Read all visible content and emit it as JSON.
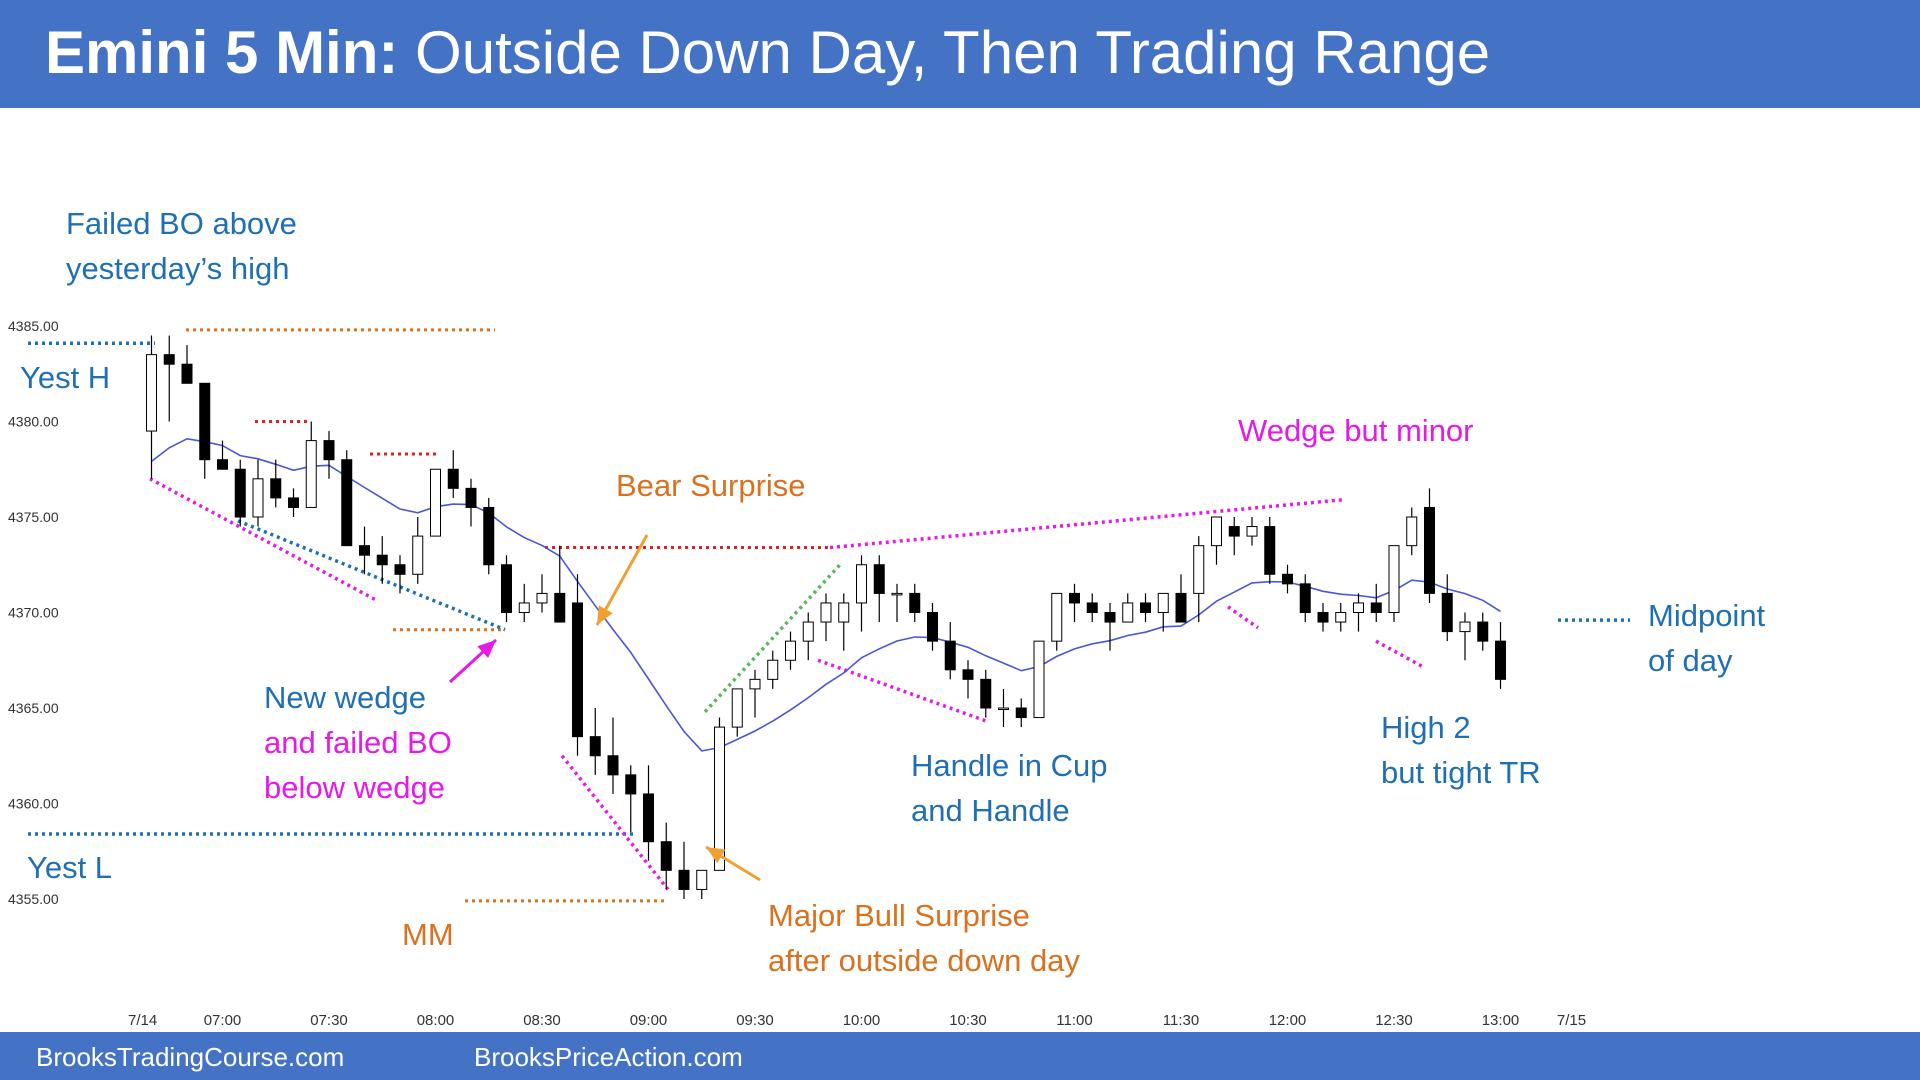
{
  "title": {
    "bold": "Emini 5 Min:",
    "rest": "Outside Down Day, Then Trading Range"
  },
  "footer": {
    "left": "BrooksTradingCourse.com",
    "right": "BrooksPriceAction.com"
  },
  "colors": {
    "header": "#4472C4",
    "blue_text": "#1F6FB4",
    "magenta": "#E619E6",
    "orange": "#D9711E",
    "bull_box": "#5FCB5F",
    "bear_box": "#EC3C3C",
    "ema": "#4A55D8"
  },
  "chart_data": {
    "type": "candlestick",
    "ylim": [
      4354,
      4386
    ],
    "yticks": [
      "4385.00",
      "4380.00",
      "4375.00",
      "4370.00",
      "4365.00",
      "4360.00",
      "4355.00"
    ],
    "ytick_values": [
      4385,
      4380,
      4375,
      4370,
      4365,
      4360,
      4355
    ],
    "xticks": [
      "7/14",
      "07:00",
      "07:30",
      "08:00",
      "08:30",
      "09:00",
      "09:30",
      "10:00",
      "10:30",
      "11:00",
      "11:30",
      "12:00",
      "12:30",
      "13:00",
      "7/15"
    ],
    "xtick_bars": [
      -0.5,
      4,
      10,
      16,
      22,
      28,
      34,
      40,
      46,
      52,
      58,
      64,
      70,
      76,
      80
    ],
    "bars": [
      [
        4379.5,
        4384.5,
        4377,
        4383.5
      ],
      [
        4383.5,
        4384.5,
        4380,
        4383
      ],
      [
        4383,
        4384,
        4382,
        4382
      ],
      [
        4382,
        4382,
        4377,
        4378
      ],
      [
        4378,
        4379,
        4377.5,
        4377.5
      ],
      [
        4377.5,
        4378,
        4374.5,
        4375
      ],
      [
        4375,
        4378,
        4374.5,
        4377
      ],
      [
        4377,
        4378,
        4375.5,
        4376
      ],
      [
        4376,
        4376.5,
        4375,
        4375.5
      ],
      [
        4375.5,
        4380,
        4375.5,
        4379
      ],
      [
        4379,
        4379.5,
        4377,
        4378
      ],
      [
        4378,
        4378.5,
        4374,
        4373.5
      ],
      [
        4373.5,
        4374.5,
        4372,
        4373
      ],
      [
        4373,
        4374,
        4371.5,
        4372.5
      ],
      [
        4372.5,
        4373,
        4371,
        4372
      ],
      [
        4372,
        4375,
        4371.5,
        4374
      ],
      [
        4374,
        4377.5,
        4374,
        4377.5
      ],
      [
        4377.5,
        4378.5,
        4376,
        4376.5
      ],
      [
        4376.5,
        4377,
        4374.5,
        4375.5
      ],
      [
        4375.5,
        4376,
        4372,
        4372.5
      ],
      [
        4372.5,
        4373,
        4369.5,
        4370
      ],
      [
        4370,
        4371.5,
        4369.5,
        4370.5
      ],
      [
        4370.5,
        4372,
        4370,
        4371
      ],
      [
        4371,
        4373.5,
        4369.5,
        4369.5
      ],
      [
        4370.5,
        4372,
        4362.5,
        4363.5
      ],
      [
        4363.5,
        4365,
        4361.5,
        4362.5
      ],
      [
        4362.5,
        4364.5,
        4360.5,
        4361.5
      ],
      [
        4361.5,
        4362,
        4358.5,
        4360.5
      ],
      [
        4360.5,
        4362,
        4357,
        4358
      ],
      [
        4358,
        4359,
        4355.5,
        4356.5
      ],
      [
        4356.5,
        4358,
        4355,
        4355.5
      ],
      [
        4355.5,
        4356.5,
        4355,
        4356.5
      ],
      [
        4356.5,
        4364.5,
        4356.5,
        4364
      ],
      [
        4364,
        4366,
        4363.5,
        4366
      ],
      [
        4366,
        4367,
        4364.5,
        4366.5
      ],
      [
        4366.5,
        4368,
        4366,
        4367.5
      ],
      [
        4367.5,
        4369,
        4367,
        4368.5
      ],
      [
        4368.5,
        4370,
        4367.5,
        4369.5
      ],
      [
        4369.5,
        4371,
        4368.5,
        4370.5
      ],
      [
        4369.5,
        4371,
        4368,
        4370.5
      ],
      [
        4370.5,
        4373,
        4369,
        4372.5
      ],
      [
        4372.5,
        4373,
        4369.5,
        4371
      ],
      [
        4371,
        4371.5,
        4369.5,
        4371
      ],
      [
        4371,
        4371.5,
        4369.5,
        4370
      ],
      [
        4370,
        4370.5,
        4368,
        4368.5
      ],
      [
        4368.5,
        4369.5,
        4366.5,
        4367
      ],
      [
        4367,
        4367.5,
        4365.5,
        4366.5
      ],
      [
        4366.5,
        4367,
        4364.5,
        4365
      ],
      [
        4365,
        4366,
        4364,
        4365
      ],
      [
        4365,
        4365.5,
        4364,
        4364.5
      ],
      [
        4364.5,
        4368.5,
        4364.5,
        4368.5
      ],
      [
        4368.5,
        4371,
        4368,
        4371
      ],
      [
        4371,
        4371.5,
        4369.5,
        4370.5
      ],
      [
        4370.5,
        4371,
        4369.5,
        4370
      ],
      [
        4370,
        4370.5,
        4368,
        4369.5
      ],
      [
        4369.5,
        4371,
        4369.5,
        4370.5
      ],
      [
        4370.5,
        4371,
        4369.5,
        4370
      ],
      [
        4370,
        4371,
        4369,
        4371
      ],
      [
        4371,
        4372,
        4369.5,
        4369.5
      ],
      [
        4371,
        4374,
        4369.5,
        4373.5
      ],
      [
        4373.5,
        4375,
        4372.5,
        4375
      ],
      [
        4374.5,
        4375,
        4373,
        4374
      ],
      [
        4374,
        4375,
        4373.5,
        4374.5
      ],
      [
        4374.5,
        4375,
        4371.5,
        4372
      ],
      [
        4372,
        4372.5,
        4371,
        4371.5
      ],
      [
        4371.5,
        4372,
        4369.5,
        4370
      ],
      [
        4370,
        4370.5,
        4369,
        4369.5
      ],
      [
        4369.5,
        4370.5,
        4369,
        4370
      ],
      [
        4370,
        4371,
        4369,
        4370.5
      ],
      [
        4370.5,
        4371.5,
        4369.5,
        4370
      ],
      [
        4370,
        4373.5,
        4369.5,
        4373.5
      ],
      [
        4373.5,
        4375.5,
        4373,
        4375
      ],
      [
        4375.5,
        4376.5,
        4370.5,
        4371
      ],
      [
        4371,
        4372,
        4368.5,
        4369
      ],
      [
        4369,
        4370,
        4367.5,
        4369.5
      ],
      [
        4369.5,
        4370,
        4368,
        4368.5
      ],
      [
        4368.5,
        4369.5,
        4366,
        4366.5
      ]
    ],
    "annotations": [
      {
        "lines": [
          "Failed BO above",
          "yesterday’s high"
        ],
        "color": "blue"
      },
      {
        "lines": [
          "Yest H"
        ],
        "color": "blue"
      },
      {
        "lines": [
          "Yest L"
        ],
        "color": "blue"
      },
      {
        "lines": [
          "New wedge"
        ],
        "color": "blue"
      },
      {
        "lines": [
          "and failed BO",
          "below wedge"
        ],
        "color": "magenta"
      },
      {
        "lines": [
          "MM"
        ],
        "color": "orange"
      },
      {
        "lines": [
          "Bear Surprise"
        ],
        "color": "orange"
      },
      {
        "lines": [
          "Major Bull Surprise",
          "after outside down day"
        ],
        "color": "orange"
      },
      {
        "lines": [
          "Handle in Cup",
          "and Handle"
        ],
        "color": "blue"
      },
      {
        "lines": [
          "Wedge but minor"
        ],
        "color": "magenta"
      },
      {
        "lines": [
          "High 2",
          "but tight TR"
        ],
        "color": "blue"
      },
      {
        "lines": [
          "Midpoint",
          "of day"
        ],
        "color": "blue"
      }
    ]
  }
}
